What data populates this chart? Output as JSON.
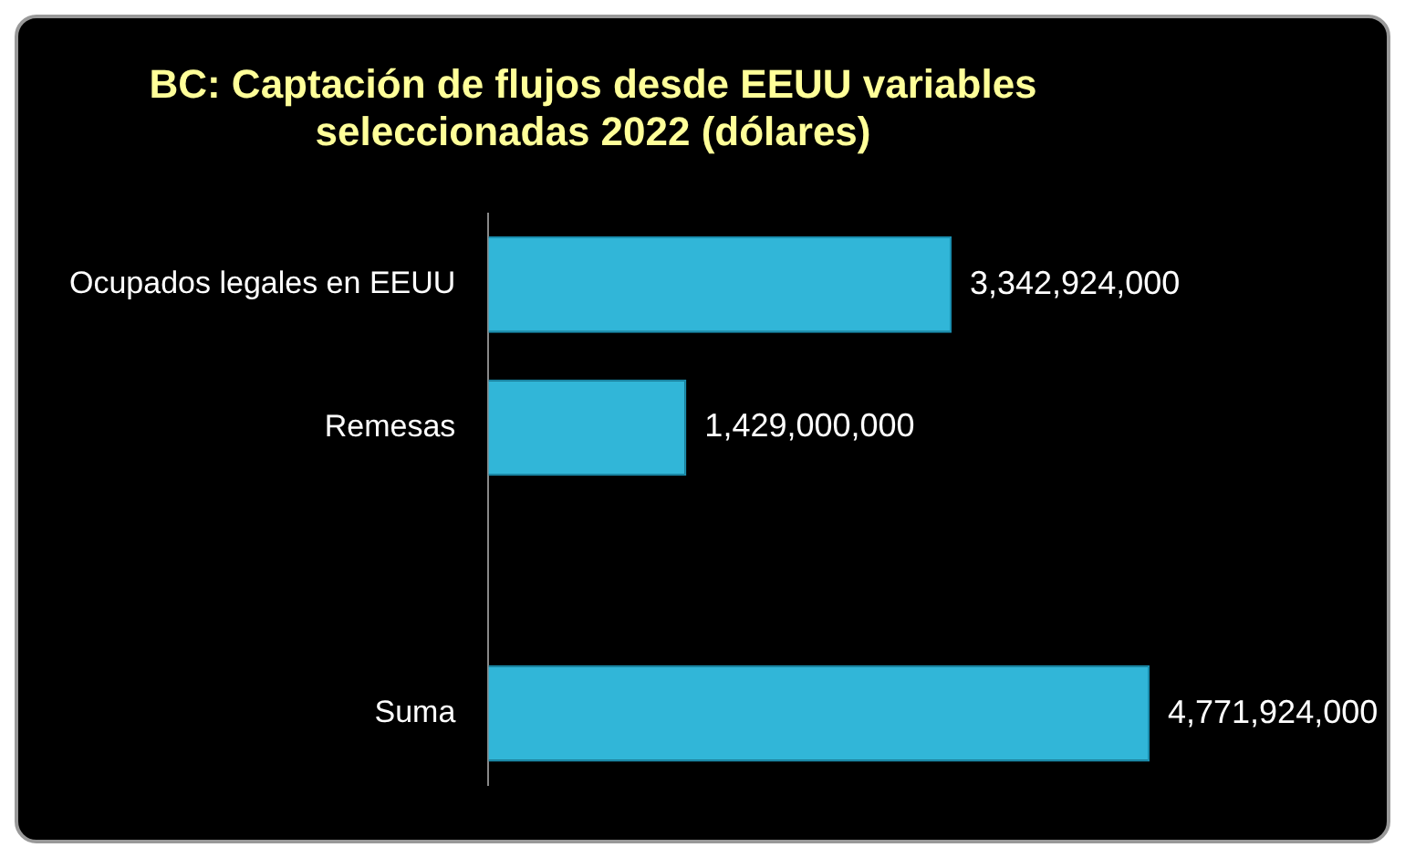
{
  "chart_data": {
    "type": "bar",
    "title": "BC: Captación de flujos desde EEUU variables seleccionadas 2022 (dólares)",
    "orientation": "horizontal",
    "categories": [
      "Ocupados legales en EEUU",
      "Remesas",
      null,
      "Suma"
    ],
    "values": [
      3342924000,
      1429000000,
      null,
      4771924000
    ],
    "color": "#31b6d8",
    "value_labels": [
      "3,342,924,000",
      "1,429,000,000",
      null,
      "4,771,924,000"
    ],
    "tick_labels": "y"
  }
}
